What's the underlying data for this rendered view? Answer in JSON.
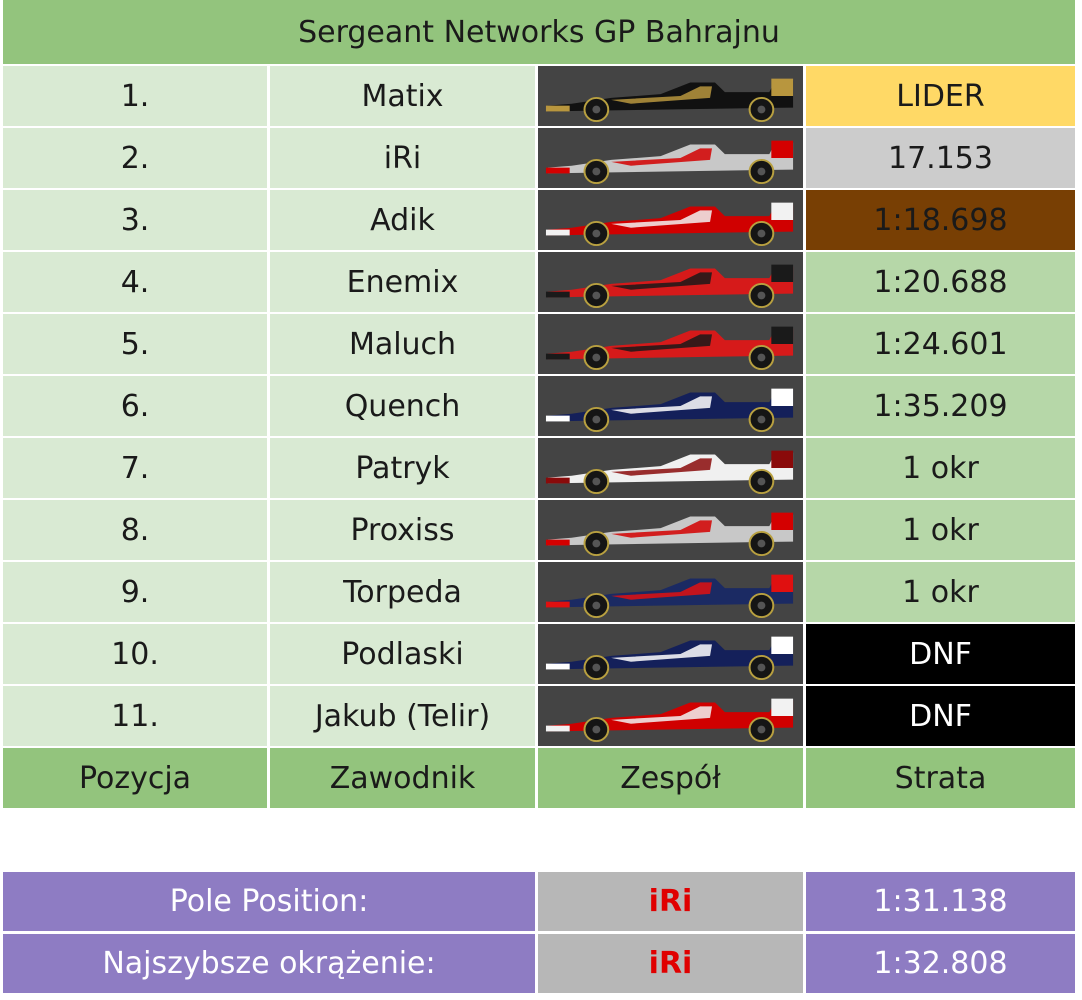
{
  "title": "Sergeant Networks GP Bahrajnu",
  "rows": [
    {
      "pos": "1.",
      "driver": "Matix",
      "car": "lotus",
      "gap": "LIDER"
    },
    {
      "pos": "2.",
      "driver": "iRi",
      "car": "mclaren",
      "gap": "17.153"
    },
    {
      "pos": "3.",
      "driver": "Adik",
      "car": "ferrari",
      "gap": "1:18.698"
    },
    {
      "pos": "4.",
      "driver": "Enemix",
      "car": "marussia",
      "gap": "1:20.688"
    },
    {
      "pos": "5.",
      "driver": "Maluch",
      "car": "marussia",
      "gap": "1:24.601"
    },
    {
      "pos": "6.",
      "driver": "Quench",
      "car": "williams",
      "gap": "1:35.209"
    },
    {
      "pos": "7.",
      "driver": "Patryk",
      "car": "hrt",
      "gap": "1 okr"
    },
    {
      "pos": "8.",
      "driver": "Proxiss",
      "car": "mclaren",
      "gap": "1 okr"
    },
    {
      "pos": "9.",
      "driver": "Torpeda",
      "car": "redbull",
      "gap": "1 okr"
    },
    {
      "pos": "10.",
      "driver": "Podlaski",
      "car": "williams",
      "gap": "DNF"
    },
    {
      "pos": "11.",
      "driver": "Jakub (Telir)",
      "car": "ferrari",
      "gap": "DNF"
    }
  ],
  "headers": {
    "pos": "Pozycja",
    "driver": "Zawodnik",
    "team": "Zespół",
    "gap": "Strata"
  },
  "stats": [
    {
      "label": "Pole Position:",
      "driver": "iRi",
      "time": "1:31.138"
    },
    {
      "label": "Najszybsze okrążenie:",
      "driver": "iRi",
      "time": "1:32.808"
    }
  ],
  "car_colors": {
    "lotus": [
      "#111111",
      "#b8963e"
    ],
    "mclaren": [
      "#c8c8c8",
      "#d40000"
    ],
    "ferrari": [
      "#d00000",
      "#f2f2f2"
    ],
    "marussia": [
      "#d61a1a",
      "#1a1a1a"
    ],
    "williams": [
      "#14205a",
      "#ffffff"
    ],
    "hrt": [
      "#f0f0f0",
      "#8a0a0a"
    ],
    "redbull": [
      "#1b2a63",
      "#e01010"
    ]
  }
}
